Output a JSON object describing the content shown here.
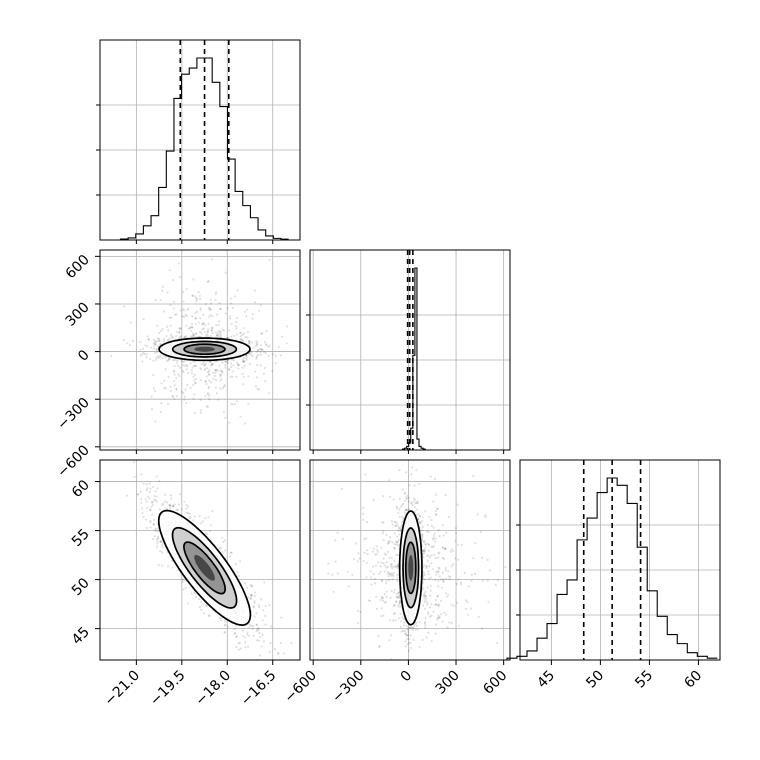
{
  "chart_data": [
    {
      "type": "corner",
      "parameters": [
        {
          "ticks": [
            -21.0,
            -19.5,
            -18.0,
            -16.5
          ],
          "tick_labels": [
            "−21.0",
            "−19.5",
            "−18.0",
            "−16.5"
          ],
          "range": [
            -22.2,
            -15.6
          ],
          "mean": -18.75,
          "std": 0.75,
          "quantiles": [
            -19.55,
            -18.75,
            -17.95
          ],
          "hist_counts": [
            0.005,
            0.01,
            0.03,
            0.07,
            0.12,
            0.26,
            0.44,
            0.7,
            0.82,
            0.85,
            0.9,
            0.9,
            0.78,
            0.66,
            0.4,
            0.24,
            0.17,
            0.11,
            0.05,
            0.02,
            0.008,
            0.004
          ]
        },
        {
          "ticks": [
            -600,
            -300,
            0,
            300,
            600
          ],
          "tick_labels": [
            "−600",
            "−300",
            "0",
            "300",
            "600"
          ],
          "range": [
            -620,
            640
          ],
          "mean": 15,
          "std": 35,
          "quantiles": [
            -5,
            8,
            28
          ],
          "hist_counts": [
            0.0,
            0.0,
            0.0,
            0.0,
            0.0,
            0.0,
            0.005,
            0.01,
            0.02,
            0.04,
            0.12,
            0.52,
            1.0,
            0.06,
            0.02,
            0.01,
            0.005,
            0.0,
            0.0,
            0.0
          ]
        },
        {
          "ticks": [
            45,
            50,
            55,
            60
          ],
          "tick_labels": [
            "45",
            "50",
            "55",
            "60"
          ],
          "range": [
            41.8,
            62.2
          ],
          "mean": 51.2,
          "std": 2.9,
          "quantiles": [
            48.3,
            51.2,
            54.1
          ],
          "hist_counts": [
            0.01,
            0.02,
            0.05,
            0.12,
            0.2,
            0.36,
            0.44,
            0.66,
            0.78,
            0.92,
            1.0,
            0.96,
            0.86,
            0.62,
            0.38,
            0.24,
            0.14,
            0.09,
            0.04,
            0.02,
            0.01
          ]
        }
      ],
      "correlations": {
        "0-1": 0.0,
        "0-2": -0.85,
        "1-2": 0.0
      },
      "y_range_overrides": {
        "1": [
          -620,
          640
        ],
        "2": [
          41.8,
          62.2
        ]
      },
      "grid": true,
      "colors": {
        "ink": "#000000",
        "grid": "#b0b0b0",
        "background": "#ffffff"
      }
    }
  ]
}
